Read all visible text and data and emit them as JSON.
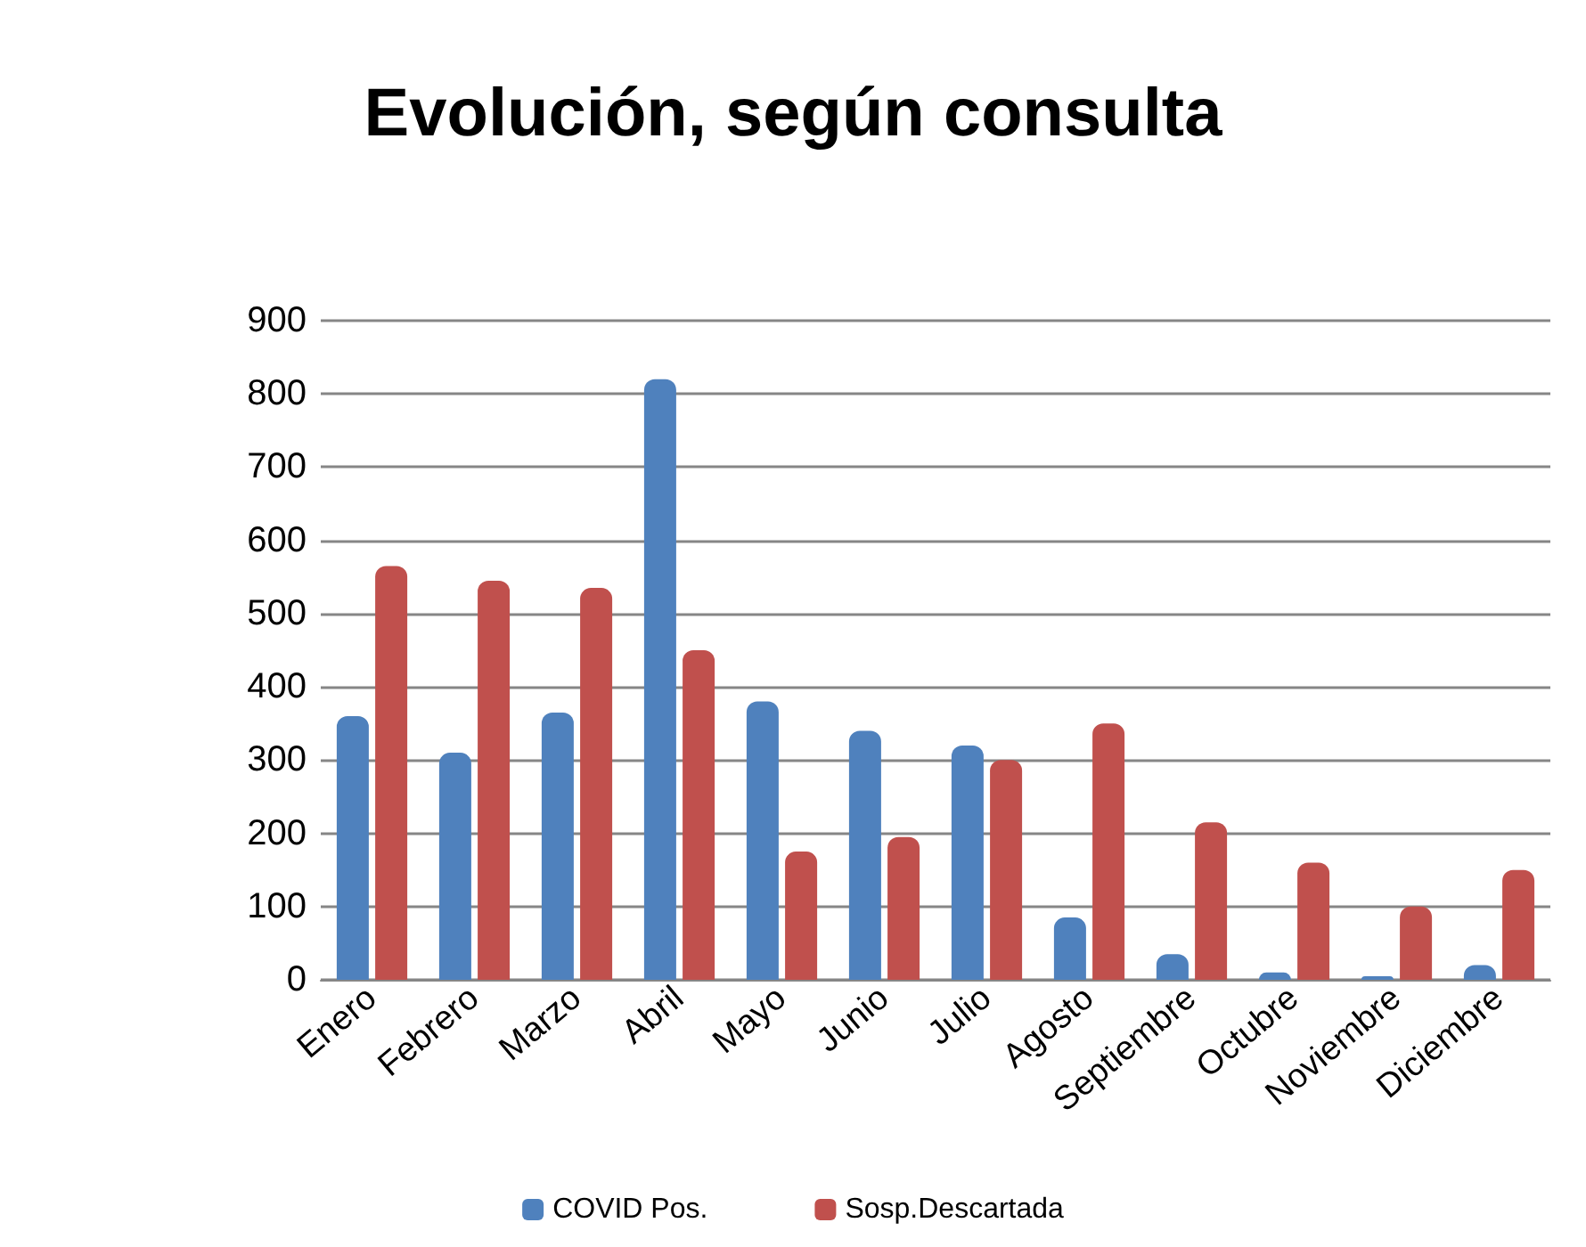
{
  "chart_data": {
    "type": "bar",
    "title": "Evolución, según consulta",
    "categories": [
      "Enero",
      "Febrero",
      "Marzo",
      "Abril",
      "Mayo",
      "Junio",
      "Julio",
      "Agosto",
      "Septiembre",
      "Octubre",
      "Noviembre",
      "Diciembre"
    ],
    "series": [
      {
        "name": "COVID Pos.",
        "color": "#4f81bd",
        "values": [
          360,
          310,
          365,
          820,
          380,
          340,
          320,
          85,
          35,
          10,
          5,
          20
        ]
      },
      {
        "name": "Sosp.Descartada",
        "color": "#c0504d",
        "values": [
          565,
          545,
          535,
          450,
          175,
          195,
          300,
          350,
          215,
          160,
          100,
          150
        ]
      }
    ],
    "ylim": [
      0,
      900
    ],
    "yticks": [
      0,
      100,
      200,
      300,
      400,
      500,
      600,
      700,
      800,
      900
    ],
    "grid": "y",
    "legend": "bottom"
  }
}
